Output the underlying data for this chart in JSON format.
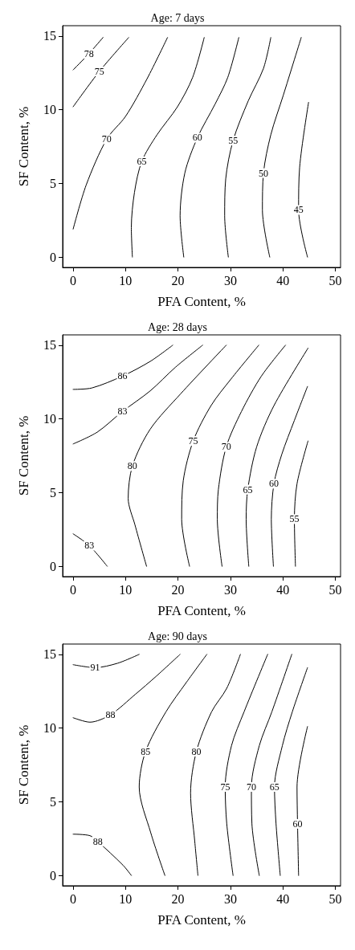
{
  "chart_data": [
    {
      "type": "line",
      "title": "Age: 7 days",
      "xlabel": "PFA Content, %",
      "ylabel": "SF Content, %",
      "xlim": [
        -2,
        51
      ],
      "ylim": [
        -0.7,
        15.7
      ],
      "xticks": [
        0,
        10,
        20,
        30,
        40,
        50
      ],
      "yticks": [
        0,
        5,
        10,
        15
      ],
      "grid": false,
      "legend": false,
      "marker": "none",
      "line_style": "solid",
      "series": [
        {
          "name": "78",
          "color": "#000000",
          "x": [
            0,
            3,
            5.7
          ],
          "values": [
            12.7,
            13.8,
            14.9
          ]
        },
        {
          "name": "75",
          "color": "#000000",
          "x": [
            0,
            5,
            10.6
          ],
          "values": [
            10.2,
            12.6,
            14.9
          ]
        },
        {
          "name": "70",
          "color": "#000000",
          "x": [
            0,
            2.5,
            6.4,
            10,
            14.1,
            18
          ],
          "values": [
            1.9,
            4.9,
            8,
            9.55,
            12.1,
            14.9
          ]
        },
        {
          "name": "65",
          "color": "#000000",
          "x": [
            11.3,
            11.1,
            11.7,
            13.1,
            16,
            19.9,
            22.8,
            25
          ],
          "values": [
            0,
            2,
            4.4,
            6.5,
            8.3,
            10.2,
            12.2,
            14.9
          ]
        },
        {
          "name": "60",
          "color": "#000000",
          "x": [
            21.1,
            20.4,
            21.3,
            23.7,
            27.1,
            29.5,
            31.6
          ],
          "values": [
            0,
            2.8,
            5.7,
            8.1,
            10.4,
            12.2,
            14.9
          ]
        },
        {
          "name": "55",
          "color": "#000000",
          "x": [
            29.6,
            28.9,
            29.1,
            30.5,
            33.4,
            36.3,
            37.7
          ],
          "values": [
            0,
            2.8,
            5.3,
            7.9,
            10.6,
            12.8,
            14.9
          ]
        },
        {
          "name": "50",
          "color": "#000000",
          "x": [
            37.5,
            36.1,
            36.3,
            37.7,
            40.1,
            43.5
          ],
          "values": [
            0,
            3.2,
            5.7,
            8.3,
            11,
            14.9
          ]
        },
        {
          "name": "45",
          "color": "#000000",
          "x": [
            44.7,
            43,
            43.2,
            44.9
          ],
          "values": [
            0,
            3.2,
            6.1,
            10.5
          ]
        }
      ]
    },
    {
      "type": "line",
      "title": "Age: 28 days",
      "xlabel": "PFA Content, %",
      "ylabel": "SF Content, %",
      "xlim": [
        -2,
        51
      ],
      "ylim": [
        -0.7,
        15.7
      ],
      "xticks": [
        0,
        10,
        20,
        30,
        40,
        50
      ],
      "yticks": [
        0,
        5,
        10,
        15
      ],
      "grid": false,
      "legend": false,
      "marker": "none",
      "line_style": "solid",
      "series": [
        {
          "name": "86",
          "color": "#000000",
          "x": [
            0,
            3.6,
            9.4,
            14.7,
            19
          ],
          "values": [
            12,
            12.1,
            12.9,
            13.9,
            15
          ]
        },
        {
          "name": "83",
          "color": "#000000",
          "x": [
            0,
            4.6,
            9.4,
            14.7,
            19.5,
            24.7
          ],
          "values": [
            8.3,
            9.1,
            10.5,
            11.9,
            13.5,
            15
          ]
        },
        {
          "name": "83",
          "color": "#000000",
          "x": [
            0,
            3.1,
            6.5
          ],
          "values": [
            2.2,
            1.4,
            0
          ]
        },
        {
          "name": "80",
          "color": "#000000",
          "x": [
            14,
            11.8,
            10.5,
            11.3,
            14.7,
            20.5,
            29.2
          ],
          "values": [
            0,
            2.8,
            4.6,
            6.8,
            9.3,
            11.7,
            15
          ]
        },
        {
          "name": "75",
          "color": "#000000",
          "x": [
            22.2,
            20.7,
            21,
            22.9,
            26.3,
            30.1,
            35.4
          ],
          "values": [
            0,
            3.2,
            5.8,
            8.5,
            10.9,
            12.7,
            15
          ]
        },
        {
          "name": "70",
          "color": "#000000",
          "x": [
            28.4,
            27.5,
            27.7,
            29.2,
            32.1,
            35.9,
            40.5
          ],
          "values": [
            0,
            3.2,
            5.2,
            8.1,
            10.5,
            12.9,
            15
          ]
        },
        {
          "name": "65",
          "color": "#000000",
          "x": [
            33.5,
            33,
            33.3,
            35,
            38.3,
            44.8
          ],
          "values": [
            0,
            3.2,
            5.2,
            8.1,
            10.9,
            14.8
          ]
        },
        {
          "name": "60",
          "color": "#000000",
          "x": [
            38.2,
            37.8,
            38.3,
            39.8,
            42.2,
            44.7
          ],
          "values": [
            0,
            3.2,
            5.6,
            7.6,
            9.9,
            12.2
          ]
        },
        {
          "name": "55",
          "color": "#000000",
          "x": [
            42.4,
            42.2,
            42.7,
            44.8
          ],
          "values": [
            0,
            3.2,
            5.6,
            8.5
          ]
        }
      ]
    },
    {
      "type": "line",
      "title": "Age: 90 days",
      "xlabel": "PFA Content, %",
      "ylabel": "SF Content, %",
      "xlim": [
        -2,
        51
      ],
      "ylim": [
        -0.7,
        15.7
      ],
      "xticks": [
        0,
        10,
        20,
        30,
        40,
        50
      ],
      "yticks": [
        0,
        5,
        10,
        15
      ],
      "grid": false,
      "legend": false,
      "marker": "none",
      "line_style": "solid",
      "series": [
        {
          "name": "91",
          "color": "#000000",
          "x": [
            0,
            4.2,
            8.5,
            12.6
          ],
          "values": [
            14.3,
            14.1,
            14.4,
            15
          ]
        },
        {
          "name": "88",
          "color": "#000000",
          "x": [
            0,
            3.2,
            7.1,
            11.9,
            15.8,
            20.4
          ],
          "values": [
            10.7,
            10.4,
            10.9,
            12.3,
            13.5,
            15
          ]
        },
        {
          "name": "88",
          "color": "#000000",
          "x": [
            0,
            3.2,
            4.7,
            9.5,
            11.1
          ],
          "values": [
            2.8,
            2.7,
            2.3,
            0.7,
            0
          ]
        },
        {
          "name": "85",
          "color": "#000000",
          "x": [
            17.5,
            14.8,
            12.6,
            13.8,
            17.7,
            21.6,
            25.5
          ],
          "values": [
            0,
            2.9,
            6,
            8.4,
            11.1,
            13.1,
            15
          ]
        },
        {
          "name": "80",
          "color": "#000000",
          "x": [
            23.8,
            23.2,
            22.4,
            23.5,
            26.4,
            29.3,
            31.9
          ],
          "values": [
            0,
            2.3,
            5.6,
            8.4,
            11.1,
            12.7,
            15
          ]
        },
        {
          "name": "75",
          "color": "#000000",
          "x": [
            30.5,
            29.3,
            29,
            30.2,
            32.6,
            37.1
          ],
          "values": [
            0,
            3.5,
            6,
            8.8,
            11.1,
            15
          ]
        },
        {
          "name": "70",
          "color": "#000000",
          "x": [
            35.5,
            34.1,
            34,
            35.5,
            37.9,
            41.7
          ],
          "values": [
            0,
            3.5,
            6,
            8.8,
            11.1,
            15
          ]
        },
        {
          "name": "65",
          "color": "#000000",
          "x": [
            39.5,
            38.7,
            38.4,
            39.9,
            41.8,
            44.7
          ],
          "values": [
            0,
            3.5,
            6,
            8.8,
            11.1,
            14.1
          ]
        },
        {
          "name": "60",
          "color": "#000000",
          "x": [
            43,
            42.8,
            42.7,
            44.7
          ],
          "values": [
            0,
            3.5,
            6,
            10.1
          ]
        }
      ]
    }
  ]
}
